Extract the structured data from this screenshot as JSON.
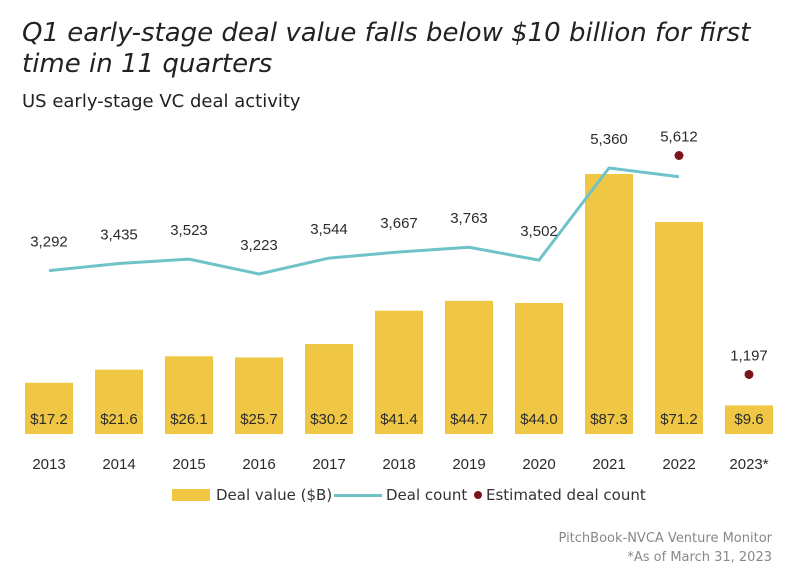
{
  "title": "Q1 early-stage deal value falls below $10 billion for first time in 11 quarters",
  "subtitle": "US early-stage VC deal activity",
  "colors": {
    "bar": "#efc745",
    "line": "#6ec3c8",
    "dot": "#7a1418",
    "text": "#2b2b2b"
  },
  "chart_data": {
    "type": "bar",
    "categories": [
      "2013",
      "2014",
      "2015",
      "2016",
      "2017",
      "2018",
      "2019",
      "2020",
      "2021",
      "2022",
      "2023*"
    ],
    "series": [
      {
        "name": "Deal value ($B)",
        "type": "bar",
        "values": [
          17.2,
          21.6,
          26.1,
          25.7,
          30.2,
          41.4,
          44.7,
          44.0,
          87.3,
          71.2,
          9.6
        ],
        "labels": [
          "$17.2",
          "$21.6",
          "$26.1",
          "$25.7",
          "$30.2",
          "$41.4",
          "$44.7",
          "$44.0",
          "$87.3",
          "$71.2",
          "$9.6"
        ]
      },
      {
        "name": "Deal count",
        "type": "line",
        "values": [
          3292,
          3435,
          3523,
          3223,
          3544,
          3667,
          3763,
          3502,
          5360,
          5183,
          null
        ],
        "labels": [
          "3,292",
          "3,435",
          "3,523",
          "3,223",
          "3,544",
          "3,667",
          "3,763",
          "3,502",
          "5,360",
          "",
          ""
        ]
      },
      {
        "name": "Estimated deal count",
        "type": "scatter",
        "values": [
          null,
          null,
          null,
          null,
          null,
          null,
          null,
          null,
          null,
          5612,
          1197
        ],
        "labels": [
          "",
          "",
          "",
          "",
          "",
          "",
          "",
          "",
          "",
          "5,612",
          "1,197"
        ]
      }
    ],
    "bar_ylim": [
      0,
      100
    ],
    "count_ylim": [
      0,
      6600
    ],
    "legend": [
      "Deal value ($B)",
      "Deal count",
      "Estimated deal count"
    ],
    "legend_position": "bottom",
    "grid": false
  },
  "source": {
    "line1": "PitchBook-NVCA Venture Monitor",
    "line2": "*As of March 31, 2023"
  }
}
